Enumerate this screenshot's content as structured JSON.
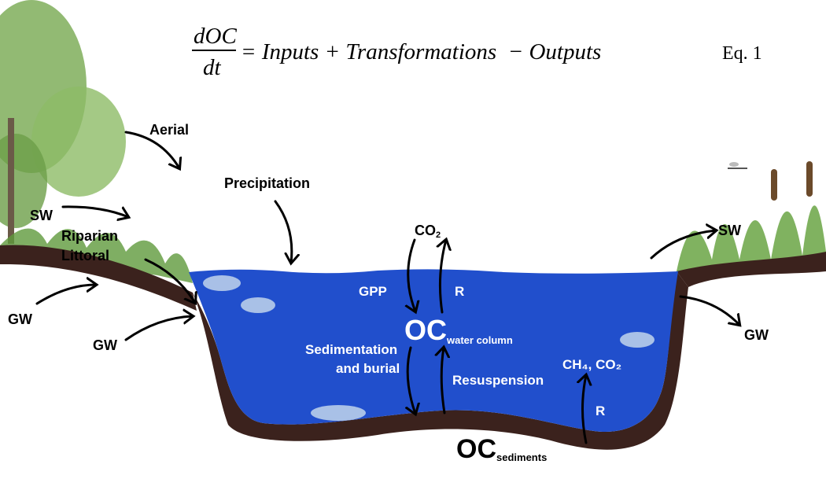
{
  "equation": {
    "numerator": "dOC",
    "denominator": "dt",
    "rhs": "= Inputs + Transformations  − Outputs",
    "number": "Eq. 1"
  },
  "labels": {
    "aerial": "Aerial",
    "precipitation": "Precipitation",
    "sw_left": "SW",
    "riparian": "Riparian",
    "littoral": "Littoral",
    "gw_left_upper": "GW",
    "gw_left_lower": "GW",
    "co2_top": "CO",
    "co2_sub": "2",
    "gpp": "GPP",
    "r_water": "R",
    "oc_water": "OC",
    "oc_water_sub": "water column",
    "sedimentation": "Sedimentation",
    "and_burial": "and burial",
    "resuspension": "Resuspension",
    "ch4_co2": "CH₄, CO₂",
    "r_sediment": "R",
    "oc_sediments": "OC",
    "oc_sediments_sub": "sediments",
    "sw_right": "SW",
    "gw_right": "GW"
  },
  "colors": {
    "water": "#214fcc",
    "soil": "#3b221d",
    "vegetation": "#5f9a3c"
  }
}
